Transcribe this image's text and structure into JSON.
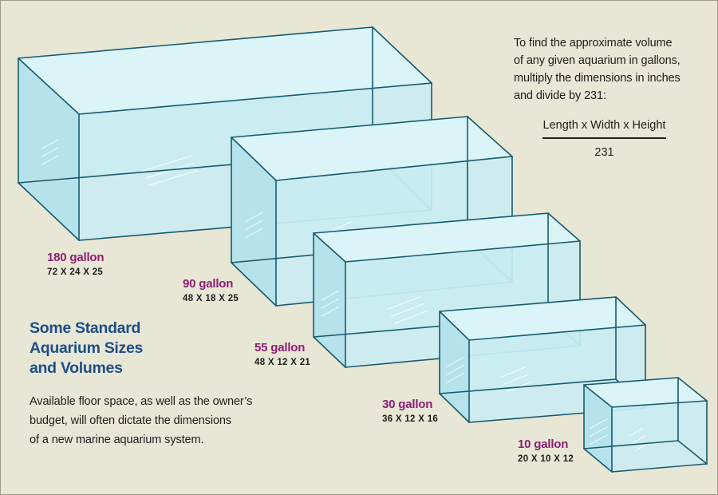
{
  "heading": {
    "line1": "Some Standard",
    "line2": "Aquarium Sizes",
    "line3": "and Volumes"
  },
  "description": {
    "line1": "Available floor space, as well as the owner’s",
    "line2": "budget, will often dictate the dimensions",
    "line3": "of a new marine aquarium system."
  },
  "formula": {
    "intro_line1": "To find the approximate volume",
    "intro_line2": "of any given aquarium in gallons,",
    "intro_line3": "multiply the dimensions in inches",
    "intro_line4": "and divide by 231:",
    "numerator": "Length x Width x Height",
    "denominator": "231"
  },
  "tanks": [
    {
      "gallons": "180 gallon",
      "dimensions": "72 X 24 X 25"
    },
    {
      "gallons": "90 gallon",
      "dimensions": "48 X 18 X 25"
    },
    {
      "gallons": "55 gallon",
      "dimensions": "48 X 12 X 21"
    },
    {
      "gallons": "30 gallon",
      "dimensions": "36 X 12 X 16"
    },
    {
      "gallons": "10 gallon",
      "dimensions": "20 X 10 X 12"
    }
  ],
  "colors": {
    "background": "#e8e6d4",
    "tank_stroke": "#175a6e",
    "tank_front": "#c9ecf3",
    "tank_side": "#b6e2ec",
    "tank_top": "#daf4f8",
    "gallon_label": "#8a1f74",
    "heading": "#1d4e88"
  }
}
